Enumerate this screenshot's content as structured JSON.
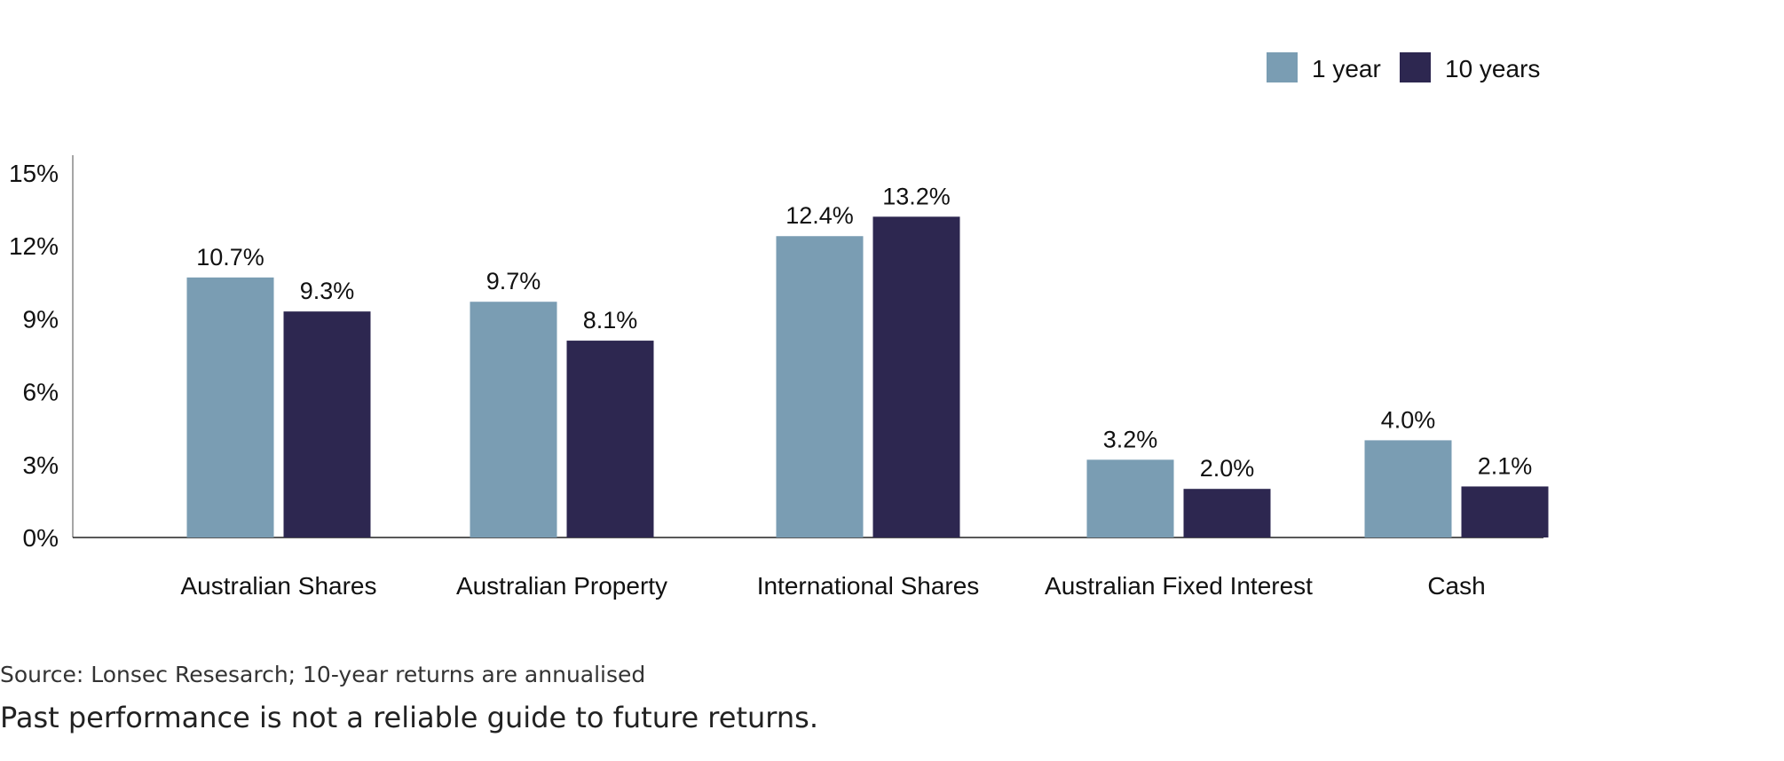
{
  "chart_data": {
    "type": "bar",
    "title": "",
    "xlabel": "",
    "ylabel": "",
    "ylim": [
      0,
      15
    ],
    "yticks": [
      0,
      3,
      6,
      9,
      12,
      15
    ],
    "ytick_labels": [
      "0%",
      "3%",
      "6%",
      "9%",
      "12%",
      "15%"
    ],
    "grid": false,
    "legend_position": "top-right",
    "categories": [
      "Australian Shares",
      "Australian Property",
      "International Shares",
      "Australian Fixed Interest",
      "Cash"
    ],
    "series": [
      {
        "name": "1 year",
        "color": "#7a9db3",
        "values": [
          10.7,
          9.7,
          12.4,
          3.2,
          4.0
        ],
        "labels": [
          "10.7%",
          "9.7%",
          "12.4%",
          "3.2%",
          "4.0%"
        ]
      },
      {
        "name": "10 years",
        "color": "#2d2750",
        "values": [
          9.3,
          8.1,
          13.2,
          2.0,
          2.1
        ],
        "labels": [
          "9.3%",
          "8.1%",
          "13.2%",
          "2.0%",
          "2.1%"
        ]
      }
    ]
  },
  "footer": {
    "source": "Source: Lonsec Resesarch; 10-year returns are annualised",
    "disclaimer": "Past performance is not a reliable guide to future returns."
  }
}
